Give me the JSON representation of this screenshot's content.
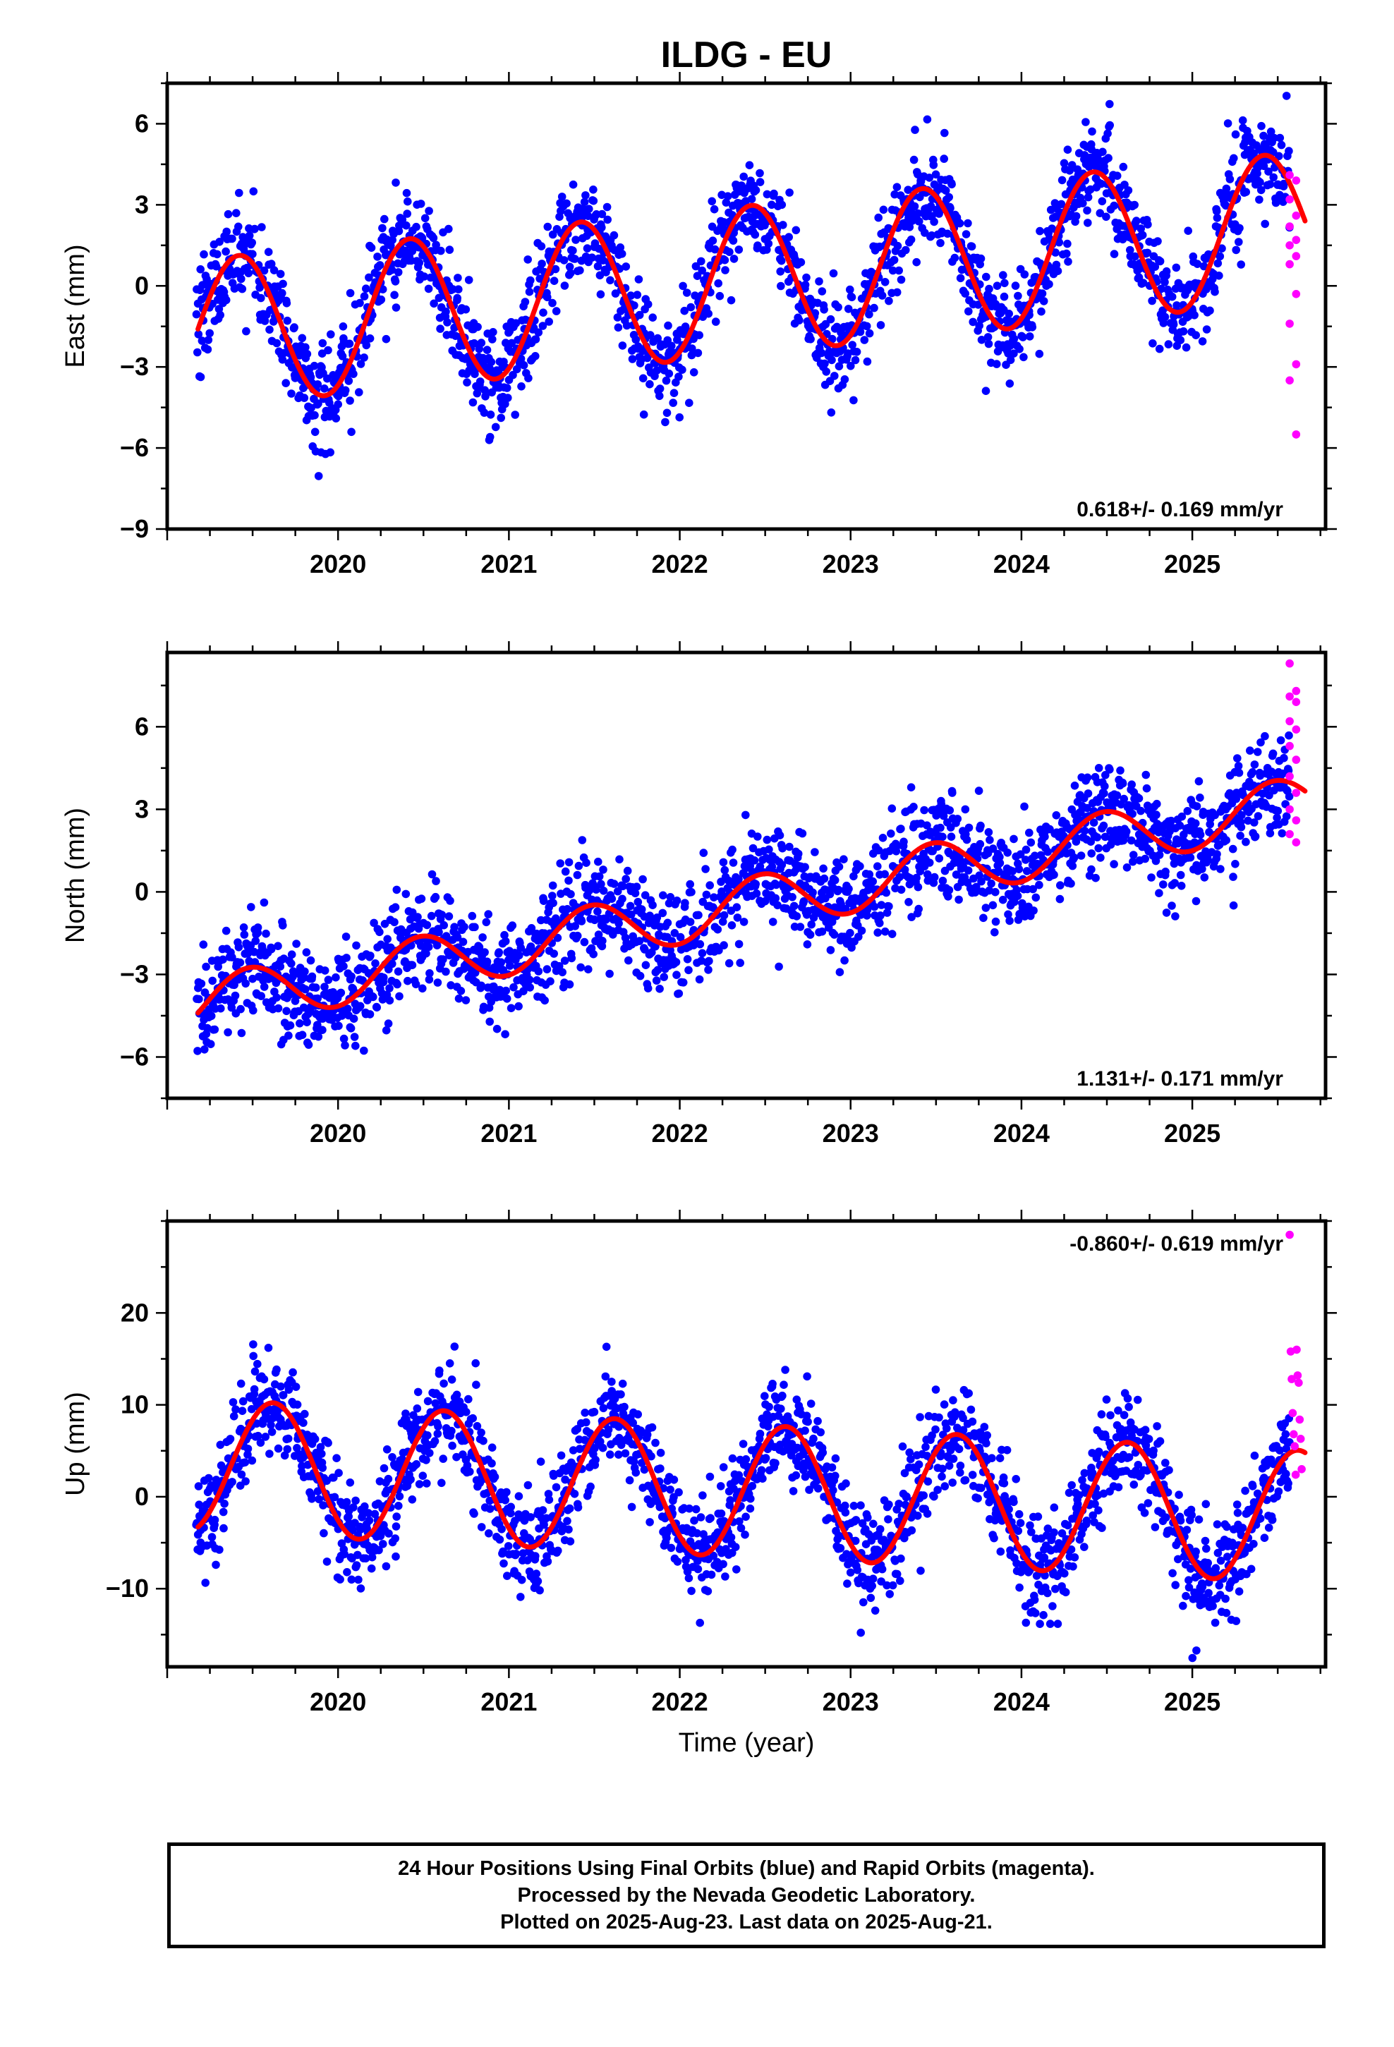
{
  "title": "ILDG - EU",
  "xlabel": "Time (year)",
  "x_tick_labels": [
    "2020",
    "2021",
    "2022",
    "2023",
    "2024",
    "2025"
  ],
  "colors": {
    "final": "#0000ff",
    "rapid": "#ff00ff",
    "model": "#ff0000"
  },
  "caption": [
    "24 Hour Positions Using Final Orbits (blue) and Rapid Orbits (magenta).",
    "Processed by the Nevada Geodetic Laboratory.",
    "Plotted on 2025-Aug-23. Last data on 2025-Aug-21."
  ],
  "chart_data": [
    {
      "type": "scatter",
      "ylabel": "East (mm)",
      "xlim": [
        2019.0,
        2025.78
      ],
      "ylim": [
        -9.0,
        7.5
      ],
      "y_ticks": [
        -9,
        -6,
        -3,
        0,
        3,
        6
      ],
      "x_ticks": [
        2020,
        2021,
        2022,
        2023,
        2024,
        2025
      ],
      "rate_label": "0.618+/- 0.169 mm/yr",
      "rate_position": "bottom-right",
      "model": {
        "rate_mm_per_yr": 0.618,
        "start": [
          2019.18,
          -1.6
        ],
        "annual_amplitude": 2.75,
        "annual_peak": 2019.42,
        "noise_sd": 0.95
      },
      "series": [
        {
          "role": "final",
          "x_range": [
            2019.17,
            2025.57
          ],
          "approx_points": 2200
        },
        {
          "role": "rapid",
          "x_range": [
            2025.57,
            2025.64
          ],
          "values_y": [
            4.1,
            3.9,
            3.2,
            2.6,
            2.2,
            1.7,
            1.5,
            1.1,
            0.8,
            -0.3,
            -1.4,
            -2.9,
            -3.5,
            -5.5
          ]
        }
      ]
    },
    {
      "type": "scatter",
      "ylabel": "North (mm)",
      "xlim": [
        2019.0,
        2025.78
      ],
      "ylim": [
        -7.5,
        8.7
      ],
      "y_ticks": [
        -6,
        -3,
        0,
        3,
        6
      ],
      "x_ticks": [
        2020,
        2021,
        2022,
        2023,
        2024,
        2025
      ],
      "rate_label": "1.131+/- 0.171 mm/yr",
      "rate_position": "bottom-right",
      "model": {
        "rate_mm_per_yr": 1.131,
        "start": [
          2019.18,
          -4.4
        ],
        "annual_amplitude": 1.0,
        "annual_peak": 2019.48,
        "noise_sd": 0.95
      },
      "series": [
        {
          "role": "final",
          "x_range": [
            2019.17,
            2025.57
          ],
          "approx_points": 2200
        },
        {
          "role": "rapid",
          "x_range": [
            2025.57,
            2025.64
          ],
          "values_y": [
            8.3,
            7.3,
            7.1,
            6.9,
            6.2,
            5.9,
            5.3,
            4.8,
            4.2,
            3.6,
            3.0,
            2.6,
            2.1,
            1.8
          ]
        }
      ]
    },
    {
      "type": "scatter",
      "ylabel": "Up (mm)",
      "xlim": [
        2019.0,
        2025.78
      ],
      "ylim": [
        -18.5,
        30.0
      ],
      "y_ticks": [
        -10,
        0,
        10,
        20
      ],
      "x_ticks": [
        2020,
        2021,
        2022,
        2023,
        2024,
        2025
      ],
      "rate_label": "-0.860+/- 0.619 mm/yr",
      "rate_position": "top-right",
      "model": {
        "rate_mm_per_yr": -0.86,
        "start": [
          2019.18,
          -3.3
        ],
        "annual_amplitude": 7.2,
        "annual_peak": 2019.62,
        "noise_sd": 2.8
      },
      "series": [
        {
          "role": "final",
          "x_range": [
            2019.17,
            2025.57
          ],
          "approx_points": 2200
        },
        {
          "role": "rapid",
          "x_range": [
            2025.57,
            2025.64
          ],
          "values_y": [
            28.5,
            16.0,
            15.8,
            13.2,
            12.8,
            12.4,
            9.1,
            8.4,
            6.8,
            6.3,
            5.5,
            3.0,
            2.4
          ]
        }
      ]
    }
  ]
}
